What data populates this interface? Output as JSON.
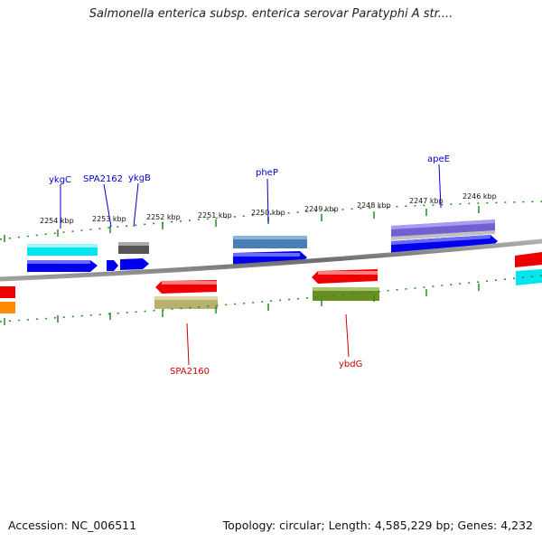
{
  "title": "Salmonella enterica subsp. enterica serovar Paratyphi A str....",
  "footer": {
    "accession": "Accession: NC_006511",
    "topology": "Topology: circular; Length: 4,585,229 bp; Genes: 4,232"
  },
  "colors": {
    "backbone": "#808080",
    "tick": "#228B22",
    "label_forward": "#0000cc",
    "label_reverse": "#cc0000"
  },
  "kbp_labels": [
    "2254 kbp",
    "2253 kbp",
    "2252 kbp",
    "2251 kbp",
    "2250 kbp",
    "2249 kbp",
    "2248 kbp",
    "2247 kbp",
    "2246 kbp"
  ],
  "gene_labels": {
    "forward": [
      "ykgC",
      "SPA2162",
      "ykgB",
      "pheP",
      "apeE"
    ],
    "reverse": [
      "SPA2160",
      "ybdG"
    ]
  }
}
